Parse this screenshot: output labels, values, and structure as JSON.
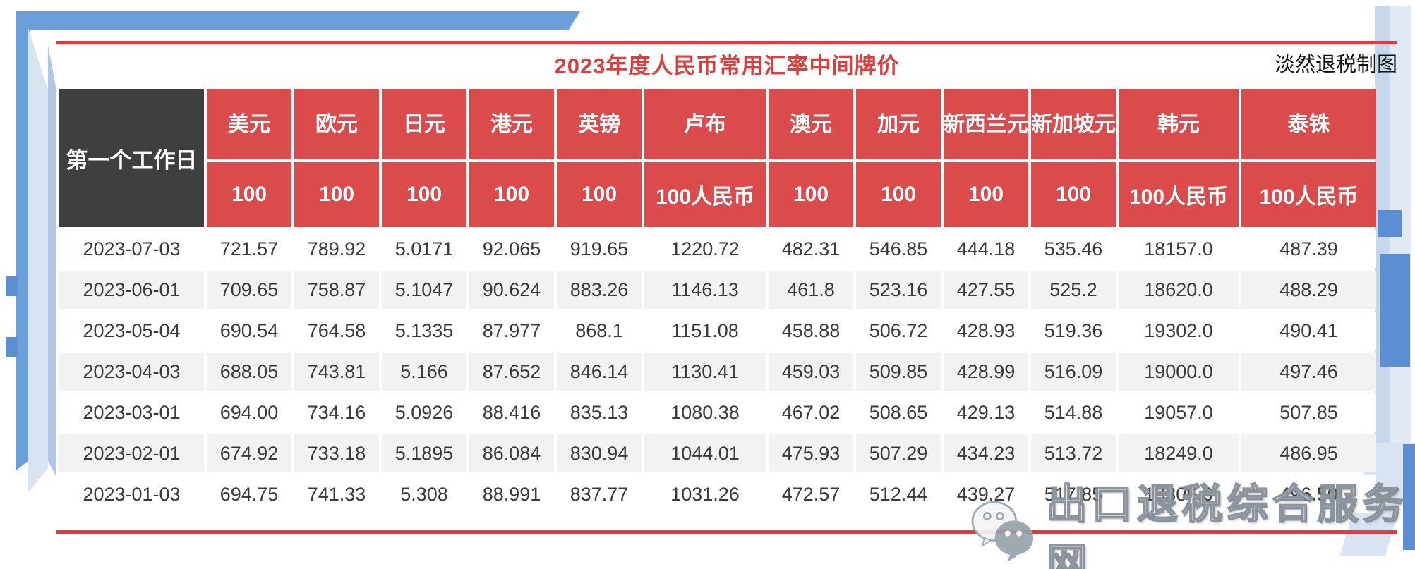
{
  "page": {
    "title": "2023年度人民币常用汇率中间牌价",
    "credit": "淡然退税制图",
    "watermark": "出口退税综合服务网"
  },
  "colors": {
    "header_red": "#DC4B4B",
    "header_dark": "#3F3F3F",
    "row_alt_gray": "#F2F2F2",
    "accent_red_line": "#E23B3B",
    "title_red": "#E03C3C",
    "deco_blue": "#6B9EDB",
    "deco_blue_pale": "#D9E4F2",
    "deco_blue_mid": "#AFC6E7",
    "deco_blue_deep": "#5B8ED2"
  },
  "table": {
    "corner_header": "第一个工作日",
    "columns": [
      {
        "name": "美元",
        "unit": "100"
      },
      {
        "name": "欧元",
        "unit": "100"
      },
      {
        "name": "日元",
        "unit": "100"
      },
      {
        "name": "港元",
        "unit": "100"
      },
      {
        "name": "英镑",
        "unit": "100"
      },
      {
        "name": "卢布",
        "unit": "100人民币"
      },
      {
        "name": "澳元",
        "unit": "100"
      },
      {
        "name": "加元",
        "unit": "100"
      },
      {
        "name": "新西兰元",
        "unit": "100"
      },
      {
        "name": "新加坡元",
        "unit": "100"
      },
      {
        "name": "韩元",
        "unit": "100人民币"
      },
      {
        "name": "泰铢",
        "unit": "100人民币"
      }
    ],
    "rows": [
      {
        "date": "2023-07-03",
        "values": [
          "721.57",
          "789.92",
          "5.0171",
          "92.065",
          "919.65",
          "1220.72",
          "482.31",
          "546.85",
          "444.18",
          "535.46",
          "18157.0",
          "487.39"
        ]
      },
      {
        "date": "2023-06-01",
        "values": [
          "709.65",
          "758.87",
          "5.1047",
          "90.624",
          "883.26",
          "1146.13",
          "461.8",
          "523.16",
          "427.55",
          "525.2",
          "18620.0",
          "488.29"
        ]
      },
      {
        "date": "2023-05-04",
        "values": [
          "690.54",
          "764.58",
          "5.1335",
          "87.977",
          "868.1",
          "1151.08",
          "458.88",
          "506.72",
          "428.93",
          "519.36",
          "19302.0",
          "490.41"
        ]
      },
      {
        "date": "2023-04-03",
        "values": [
          "688.05",
          "743.81",
          "5.166",
          "87.652",
          "846.14",
          "1130.41",
          "459.03",
          "509.85",
          "428.99",
          "516.09",
          "19000.0",
          "497.46"
        ]
      },
      {
        "date": "2023-03-01",
        "values": [
          "694.00",
          "734.16",
          "5.0926",
          "88.416",
          "835.13",
          "1080.38",
          "467.02",
          "508.65",
          "429.13",
          "514.88",
          "19057.0",
          "507.85"
        ]
      },
      {
        "date": "2023-02-01",
        "values": [
          "674.92",
          "733.18",
          "5.1895",
          "86.084",
          "830.94",
          "1044.01",
          "475.93",
          "507.29",
          "434.23",
          "513.72",
          "18249.0",
          "486.95"
        ]
      },
      {
        "date": "2023-01-03",
        "values": [
          "694.75",
          "741.33",
          "5.308",
          "88.991",
          "837.77",
          "1031.26",
          "472.57",
          "512.44",
          "439.27",
          "517.85",
          "18306.6",
          "496.50"
        ]
      }
    ]
  }
}
